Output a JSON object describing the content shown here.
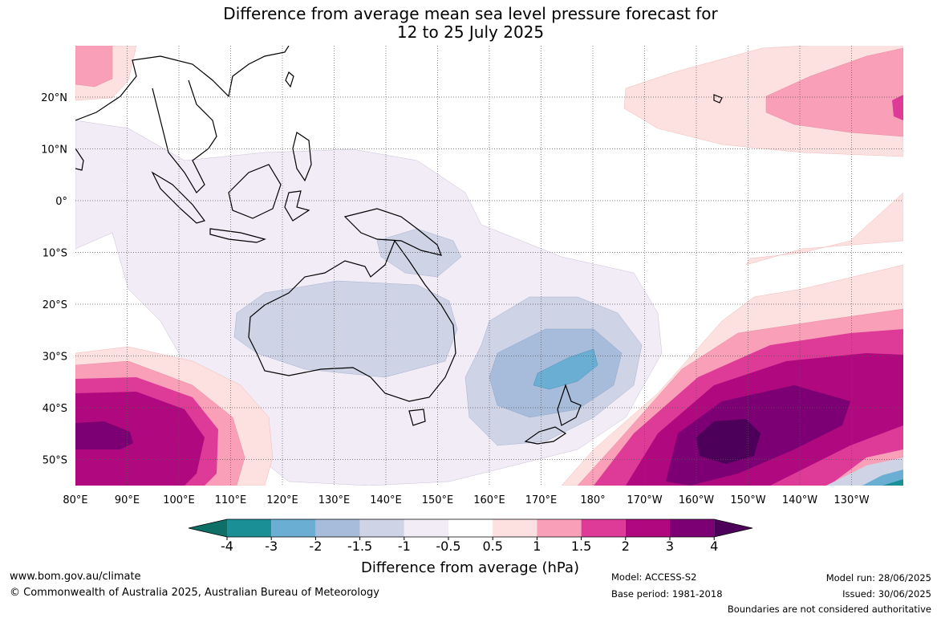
{
  "title": {
    "line1": "Difference from average mean sea level pressure forecast for",
    "line2": "12 to 25 July 2025"
  },
  "map": {
    "lon_labels": [
      "80°E",
      "90°E",
      "100°E",
      "110°E",
      "120°E",
      "130°E",
      "140°E",
      "150°E",
      "160°E",
      "170°E",
      "180°",
      "170°W",
      "160°W",
      "150°W",
      "140°W",
      "130°W"
    ],
    "lat_labels": [
      "20°N",
      "10°N",
      "0°",
      "10°S",
      "20°S",
      "30°S",
      "40°S",
      "50°S"
    ],
    "land_color": "#ffffff",
    "coast_color": "#000000",
    "grid_style": "dotted"
  },
  "colorbar": {
    "label": "Difference from average (hPa)",
    "tick_labels": [
      "-4",
      "-3",
      "-2",
      "-1.5",
      "-1",
      "-0.5",
      "0.5",
      "1",
      "1.5",
      "2",
      "3",
      "4"
    ],
    "colors": [
      "#0e6f66",
      "#1b8f96",
      "#6aaed3",
      "#a7bcda",
      "#cfd3e6",
      "#f1ecf5",
      "#ffffff",
      "#fde0e0",
      "#f9a0b8",
      "#de3a98",
      "#b0087e",
      "#7c0073",
      "#4d0059"
    ]
  },
  "footer": {
    "url": "www.bom.gov.au/climate",
    "copyright": "© Commonwealth of Australia 2025, Australian Bureau of Meteorology",
    "model": "Model: ACCESS-S2",
    "base_period": "Base period: 1981-2018",
    "model_run": "Model run: 28/06/2025",
    "issued": "Issued: 30/06/2025",
    "disclaimer": "Boundaries are not considered authoritative"
  }
}
